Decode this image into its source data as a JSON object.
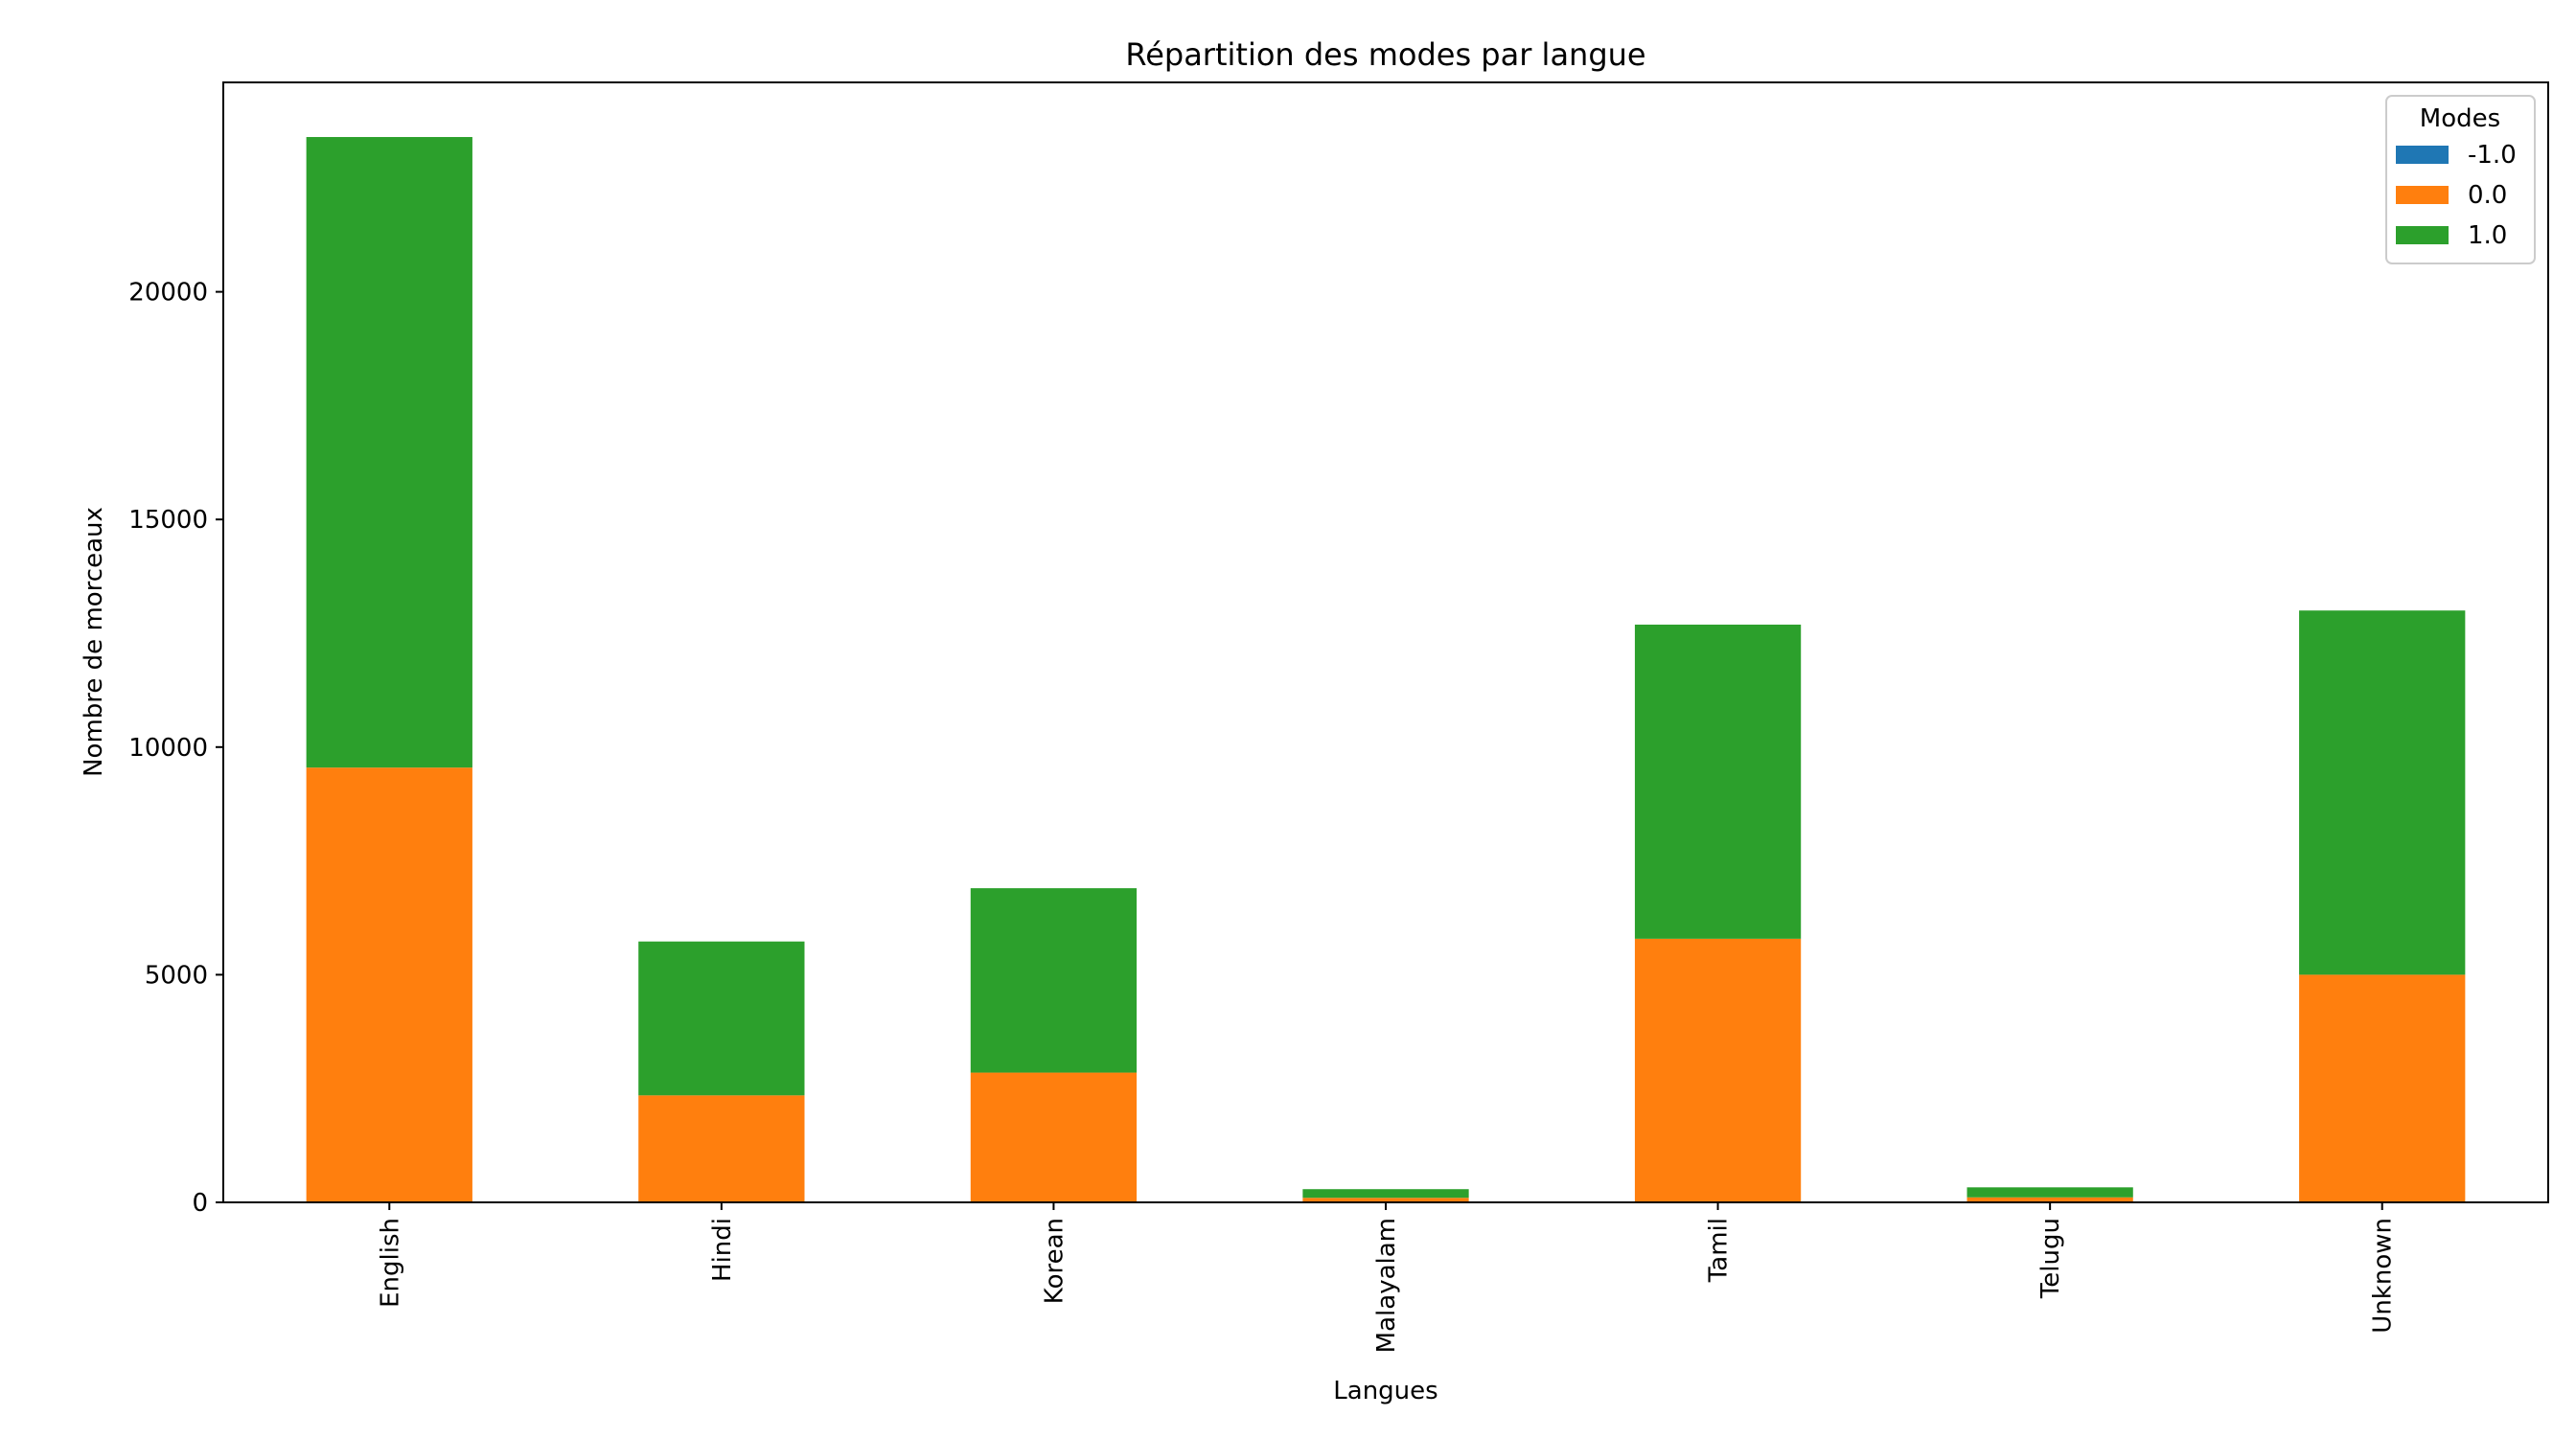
{
  "chart_data": {
    "type": "bar",
    "stacked": true,
    "title": "Répartition des modes par langue",
    "xlabel": "Langues",
    "ylabel": "Nombre de morceaux",
    "categories": [
      "English",
      "Hindi",
      "Korean",
      "Malayalam",
      "Tamil",
      "Telugu",
      "Unknown"
    ],
    "series": [
      {
        "name": "-1.0",
        "color": "#1f77b4",
        "values": [
          0,
          0,
          0,
          0,
          0,
          0,
          0
        ]
      },
      {
        "name": "0.0",
        "color": "#ff7f0e",
        "values": [
          9550,
          2350,
          2850,
          100,
          5790,
          110,
          5000
        ]
      },
      {
        "name": "1.0",
        "color": "#2ca02c",
        "values": [
          13850,
          3380,
          4050,
          190,
          6900,
          220,
          8000
        ]
      }
    ],
    "ylim": [
      0,
      24600
    ],
    "yticks": [
      0,
      5000,
      10000,
      15000,
      20000
    ],
    "ytick_labels": [
      "0",
      "5000",
      "10000",
      "15000",
      "20000"
    ],
    "grid": false,
    "legend": {
      "title": "Modes",
      "position": "top-right"
    }
  }
}
